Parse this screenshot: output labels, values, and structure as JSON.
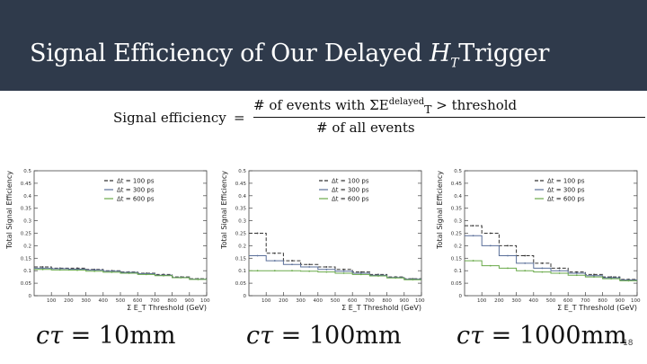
{
  "slide": {
    "title_prefix": "Signal Efficiency of Our Delayed",
    "title_var": "H",
    "title_sub": "T",
    "title_suffix": "Trigger",
    "page_number": "18"
  },
  "formula": {
    "lhs": "Signal efficiency",
    "equals": "=",
    "numerator_prefix": "# of events with ΣE",
    "numerator_sub": "T",
    "numerator_sup": "delayed",
    "numerator_suffix": "> threshold",
    "denominator": "# of all events"
  },
  "captions": [
    {
      "var": "cτ",
      "value": "= 10mm"
    },
    {
      "var": "cτ",
      "value": "= 100mm"
    },
    {
      "var": "cτ",
      "value": "= 1000mm"
    }
  ],
  "colors": {
    "header_bg": "#2f3a4b",
    "s100": "#333333",
    "s300": "#5a6f99",
    "s600": "#6aaa4a"
  },
  "chart_data": [
    {
      "type": "line",
      "title": "",
      "xlabel": "Σ E_T Threshold (GeV)",
      "ylabel": "Total Signal Efficiency",
      "xlim": [
        0,
        1000
      ],
      "ylim": [
        0,
        0.5
      ],
      "x_ticks": [
        "100",
        "200",
        "300",
        "400",
        "500",
        "600",
        "700",
        "800",
        "900",
        "1000"
      ],
      "y_ticks": [
        "0",
        "0.05",
        "0.1",
        "0.15",
        "0.2",
        "0.25",
        "0.3",
        "0.35",
        "0.4",
        "0.45",
        "0.5"
      ],
      "legend_position": "top-right",
      "x": [
        50,
        150,
        250,
        350,
        450,
        550,
        650,
        750,
        850,
        950
      ],
      "series": [
        {
          "name": "Δt = 100 ps",
          "values": [
            0.115,
            0.11,
            0.11,
            0.105,
            0.1,
            0.095,
            0.09,
            0.085,
            0.075,
            0.068
          ]
        },
        {
          "name": "Δt = 300 ps",
          "values": [
            0.11,
            0.108,
            0.106,
            0.103,
            0.098,
            0.093,
            0.088,
            0.082,
            0.073,
            0.066
          ]
        },
        {
          "name": "Δt = 600 ps",
          "values": [
            0.105,
            0.103,
            0.102,
            0.098,
            0.094,
            0.09,
            0.085,
            0.08,
            0.072,
            0.065
          ]
        }
      ]
    },
    {
      "type": "line",
      "title": "",
      "xlabel": "Σ E_T Threshold (GeV)",
      "ylabel": "Total Signal Efficiency",
      "xlim": [
        0,
        1000
      ],
      "ylim": [
        0,
        0.5
      ],
      "x_ticks": [
        "100",
        "200",
        "300",
        "400",
        "500",
        "600",
        "700",
        "800",
        "900",
        "1000"
      ],
      "y_ticks": [
        "0",
        "0.05",
        "0.1",
        "0.15",
        "0.2",
        "0.25",
        "0.3",
        "0.35",
        "0.4",
        "0.45",
        "0.5"
      ],
      "legend_position": "top-right",
      "x": [
        50,
        150,
        250,
        350,
        450,
        550,
        650,
        750,
        850,
        950
      ],
      "series": [
        {
          "name": "Δt = 100 ps",
          "values": [
            0.25,
            0.17,
            0.14,
            0.125,
            0.115,
            0.105,
            0.095,
            0.085,
            0.075,
            0.068
          ]
        },
        {
          "name": "Δt = 300 ps",
          "values": [
            0.16,
            0.14,
            0.125,
            0.115,
            0.105,
            0.098,
            0.09,
            0.082,
            0.073,
            0.066
          ]
        },
        {
          "name": "Δt = 600 ps",
          "values": [
            0.1,
            0.1,
            0.1,
            0.098,
            0.095,
            0.09,
            0.085,
            0.079,
            0.071,
            0.064
          ]
        }
      ]
    },
    {
      "type": "line",
      "title": "",
      "xlabel": "Σ E_T Threshold (GeV)",
      "ylabel": "Total Signal Efficiency",
      "xlim": [
        0,
        1000
      ],
      "ylim": [
        0,
        0.5
      ],
      "x_ticks": [
        "100",
        "200",
        "300",
        "400",
        "500",
        "600",
        "700",
        "800",
        "900",
        "1000"
      ],
      "y_ticks": [
        "0",
        "0.05",
        "0.1",
        "0.15",
        "0.2",
        "0.25",
        "0.3",
        "0.35",
        "0.4",
        "0.45",
        "0.5"
      ],
      "legend_position": "top-right",
      "x": [
        50,
        150,
        250,
        350,
        450,
        550,
        650,
        750,
        850,
        950
      ],
      "series": [
        {
          "name": "Δt = 100 ps",
          "values": [
            0.28,
            0.25,
            0.2,
            0.16,
            0.13,
            0.11,
            0.095,
            0.085,
            0.075,
            0.065
          ]
        },
        {
          "name": "Δt = 300 ps",
          "values": [
            0.24,
            0.2,
            0.16,
            0.13,
            0.11,
            0.1,
            0.09,
            0.08,
            0.072,
            0.063
          ]
        },
        {
          "name": "Δt = 600 ps",
          "values": [
            0.14,
            0.12,
            0.11,
            0.1,
            0.095,
            0.09,
            0.082,
            0.075,
            0.068,
            0.06
          ]
        }
      ]
    }
  ]
}
